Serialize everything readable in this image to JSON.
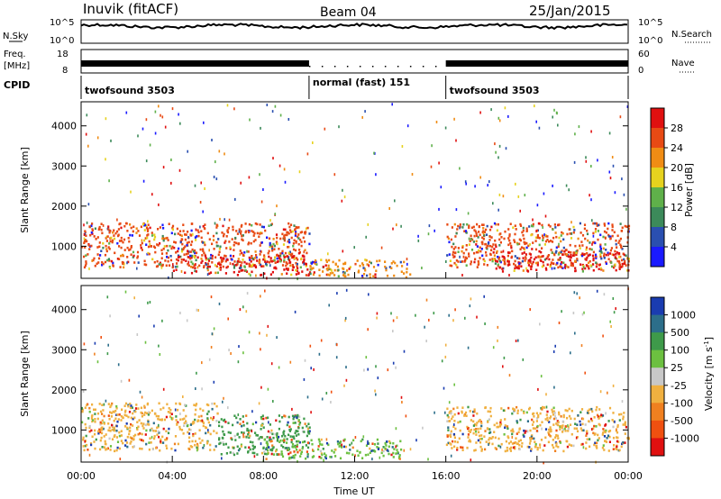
{
  "header": {
    "title": "Inuvik (fitACF)",
    "beam": "Beam 04",
    "date": "25/Jan/2015"
  },
  "top_panels": {
    "nsky_label": "N.Sky",
    "nsky_ticks": [
      "10^5",
      "10^0"
    ],
    "nsearch_label": "N.Search",
    "nsearch_ticks": [
      "10^5",
      "10^0"
    ],
    "freq_label": "Freq.",
    "freq_unit": "[MHz]",
    "freq_ticks": [
      "18",
      "8"
    ],
    "nave_label": "Nave",
    "nave_ticks": [
      "60",
      "0"
    ],
    "cpid_label": "CPID",
    "cpid_segments": [
      {
        "label": "twofsound 3503",
        "start_hour": 0,
        "end_hour": 10
      },
      {
        "label": "normal (fast) 151",
        "start_hour": 10,
        "end_hour": 16
      },
      {
        "label": "twofsound 3503",
        "start_hour": 16,
        "end_hour": 24
      }
    ]
  },
  "chart_data": [
    {
      "type": "heatmap",
      "name": "power",
      "ylabel": "Slant Range [km]",
      "xlim": [
        0,
        24
      ],
      "ylim": [
        200,
        4600
      ],
      "yticks": [
        1000,
        2000,
        3000,
        4000
      ],
      "colorbar": {
        "label": "Power [dB]",
        "ticks": [
          "4",
          "8",
          "12",
          "16",
          "20",
          "24",
          "28"
        ],
        "colors": [
          "#1a1aff",
          "#2a4fb0",
          "#3c8a5a",
          "#5fb04a",
          "#e6d21e",
          "#f08c14",
          "#e84a14",
          "#e01010"
        ]
      },
      "echo_regions": [
        {
          "x0": 0.0,
          "x1": 10.0,
          "y0": 500,
          "y1": 1600,
          "level": 24
        },
        {
          "x0": 4.0,
          "x1": 10.0,
          "y0": 300,
          "y1": 800,
          "level": 28
        },
        {
          "x0": 10.0,
          "x1": 14.5,
          "y0": 250,
          "y1": 700,
          "level": 20
        },
        {
          "x0": 16.0,
          "x1": 24.0,
          "y0": 500,
          "y1": 1600,
          "level": 24
        },
        {
          "x0": 18.0,
          "x1": 24.0,
          "y0": 400,
          "y1": 900,
          "level": 28
        }
      ]
    },
    {
      "type": "heatmap",
      "name": "velocity",
      "ylabel": "Slant Range [km]",
      "xlabel": "Time UT",
      "xlim": [
        0,
        24
      ],
      "ylim": [
        200,
        4600
      ],
      "yticks": [
        1000,
        2000,
        3000,
        4000
      ],
      "xticks": [
        "00:00",
        "04:00",
        "08:00",
        "12:00",
        "16:00",
        "20:00",
        "00:00"
      ],
      "colorbar": {
        "label": "Velocity [m s",
        "label_sup": "-1",
        "label_end": "]",
        "ticks": [
          "1000",
          "500",
          "100",
          "25",
          "-25",
          "-100",
          "-500",
          "-1000"
        ],
        "colors": [
          "#1a3cb0",
          "#2c6e8a",
          "#3e9a4a",
          "#6cc040",
          "#c8c8c8",
          "#f0b040",
          "#f08020",
          "#f05010",
          "#e01010"
        ]
      },
      "echo_regions": [
        {
          "x0": 0.0,
          "x1": 6.0,
          "y0": 500,
          "y1": 1700,
          "level": -100
        },
        {
          "x0": 6.0,
          "x1": 10.0,
          "y0": 400,
          "y1": 1400,
          "level": 100
        },
        {
          "x0": 8.0,
          "x1": 14.0,
          "y0": 300,
          "y1": 800,
          "level": 25
        },
        {
          "x0": 16.0,
          "x1": 24.0,
          "y0": 500,
          "y1": 1600,
          "level": -100
        }
      ]
    }
  ],
  "colors": {
    "frame": "#000000",
    "background": "#ffffff"
  }
}
